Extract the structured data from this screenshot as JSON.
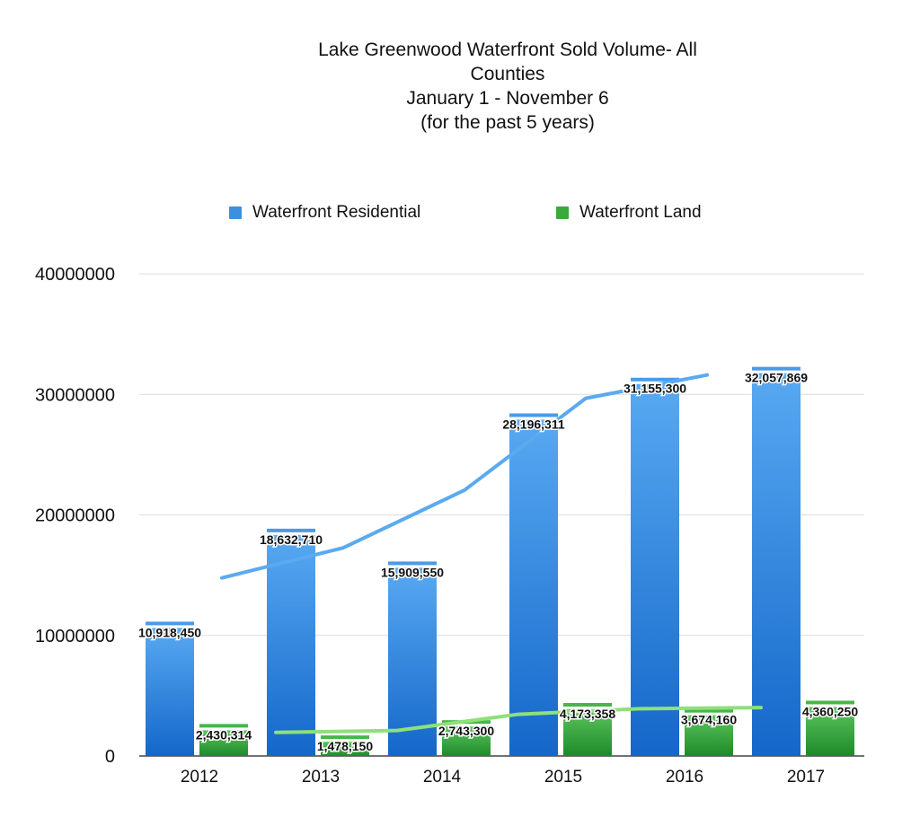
{
  "chart_data": {
    "type": "bar",
    "title_lines": [
      "Lake Greenwood Waterfront Sold Volume- All",
      "Counties",
      "January 1 - November 6",
      "(for the past 5 years)"
    ],
    "categories": [
      "2012",
      "2013",
      "2014",
      "2015",
      "2016",
      "2017"
    ],
    "series": [
      {
        "name": "Waterfront Residential",
        "color": "#3d8fe0",
        "values": [
          10918450,
          18632710,
          15909550,
          28196311,
          31155300,
          32057869
        ],
        "labels": [
          "10,918,450",
          "18,632,710",
          "15,909,550",
          "28,196,311",
          "31,155,300",
          "32,057,869"
        ]
      },
      {
        "name": "Waterfront Land",
        "color": "#3aa83a",
        "values": [
          2430314,
          1478150,
          2743300,
          4173358,
          3674160,
          4360250
        ],
        "labels": [
          "2,430,314",
          "1,478,150",
          "2,743,300",
          "4,173,358",
          "3,674,160",
          "4,360,250"
        ]
      }
    ],
    "trendlines": [
      {
        "series": "Waterfront Residential",
        "color": "#5aaaf0"
      },
      {
        "series": "Waterfront Land",
        "color": "#8ee07a"
      }
    ],
    "ylim": [
      0,
      40000000
    ],
    "yticks": [
      "0",
      "10000000",
      "20000000",
      "30000000",
      "40000000"
    ],
    "legend_position": "top-center",
    "grid": true
  }
}
